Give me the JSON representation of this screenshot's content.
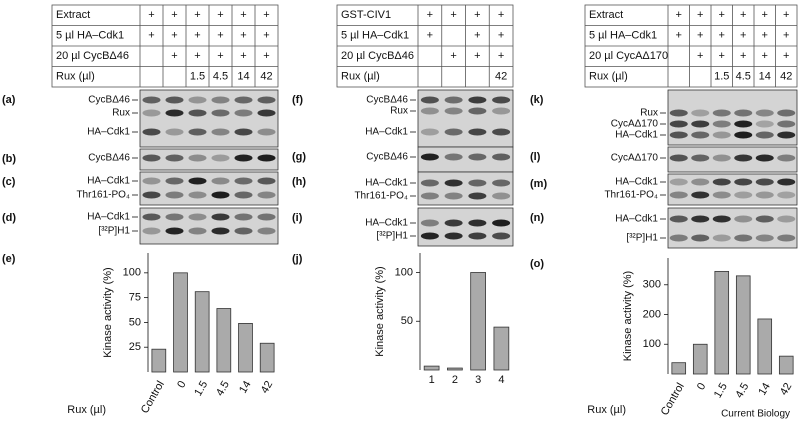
{
  "tables": [
    {
      "rows": [
        [
          "Extract",
          "+",
          "+",
          "+",
          "+",
          "+",
          "+"
        ],
        [
          "5 µl HA–Cdk1",
          "+",
          "+",
          "+",
          "+",
          "+",
          "+"
        ],
        [
          "20 µl CycBΔ46",
          null,
          "+",
          "+",
          "+",
          "+",
          "+"
        ],
        [
          "Rux (µl)",
          null,
          null,
          "1.5",
          "4.5",
          "14",
          "42"
        ]
      ]
    },
    {
      "rows": [
        [
          "GST-CIV1",
          "+",
          "+",
          "+",
          "+"
        ],
        [
          "5 µl HA–Cdk1",
          "+",
          null,
          "+",
          "+"
        ],
        [
          "20 µl CycBΔ46",
          null,
          "+",
          "+",
          "+"
        ],
        [
          "Rux (µl)",
          null,
          null,
          null,
          "42"
        ]
      ]
    },
    {
      "rows": [
        [
          "Extract",
          "+",
          "+",
          "+",
          "+",
          "+",
          "+"
        ],
        [
          "5 µl HA–Cdk1",
          "+",
          "+",
          "+",
          "+",
          "+",
          "+"
        ],
        [
          "20 µl CycAΔ170",
          null,
          "+",
          "+",
          "+",
          "+",
          "+"
        ],
        [
          "Rux (µl)",
          null,
          null,
          "1.5",
          "4.5",
          "14",
          "42"
        ]
      ]
    }
  ],
  "blots": [
    {
      "letter": "(a)",
      "labels": [
        "CycBΔ46",
        "Rux",
        "HA–Cdk1"
      ]
    },
    {
      "letter": "(b)",
      "labels": [
        "CycBΔ46"
      ]
    },
    {
      "letter": "(c)",
      "labels": [
        "HA–Cdk1",
        "Thr161-PO₄"
      ]
    },
    {
      "letter": "(d)",
      "labels": [
        "HA–Cdk1",
        "[³²P]H1"
      ]
    },
    {
      "letter": "(f)",
      "labels": [
        "CycBΔ46",
        "Rux",
        "HA–Cdk1"
      ]
    },
    {
      "letter": "(g)",
      "labels": [
        "CycBΔ46"
      ]
    },
    {
      "letter": "(h)",
      "labels": [
        "HA–Cdk1",
        "Thr161-PO₄"
      ]
    },
    {
      "letter": "(i)",
      "labels": [
        "HA–Cdk1",
        "[³²P]H1"
      ]
    },
    {
      "letter": "(k)",
      "labels": [
        "Rux",
        "CycAΔ170",
        "HA–Cdk1"
      ]
    },
    {
      "letter": "(l)",
      "labels": [
        "CycAΔ170"
      ]
    },
    {
      "letter": "(m)",
      "labels": [
        "HA–Cdk1",
        "Thr161-PO₄"
      ]
    },
    {
      "letter": "(n)",
      "labels": [
        "HA–Cdk1",
        "[³²P]H1"
      ]
    }
  ],
  "chart_data": [
    {
      "type": "bar",
      "letter": "(e)",
      "y_label": "Kinase activity (%)",
      "x_label": "Rux (µl)",
      "categories": [
        "Control",
        "0",
        "1.5",
        "4.5",
        "14",
        "42"
      ],
      "values": [
        23,
        100,
        81,
        64,
        49,
        29
      ],
      "color": "#aaaaaa",
      "ylim": [
        0,
        120
      ],
      "yticks": [
        25,
        50,
        75,
        100
      ]
    },
    {
      "type": "bar",
      "letter": "(j)",
      "y_label": "Kinase activity (%)",
      "categories": [
        "1",
        "2",
        "3",
        "4"
      ],
      "values": [
        4,
        2,
        100,
        44
      ],
      "color": "#aaaaaa",
      "ylim": [
        0,
        120
      ],
      "yticks": [
        50,
        100
      ]
    },
    {
      "type": "bar",
      "letter": "(o)",
      "y_label": "Kinase activity (%)",
      "x_label": "Rux (µl)",
      "categories": [
        "Control",
        "0",
        "1.5",
        "4.5",
        "14",
        "42"
      ],
      "values": [
        38,
        100,
        345,
        330,
        185,
        60
      ],
      "color": "#aaaaaa",
      "ylim": [
        0,
        390
      ],
      "yticks": [
        100,
        200,
        300
      ]
    }
  ],
  "footer": "Current Biology"
}
